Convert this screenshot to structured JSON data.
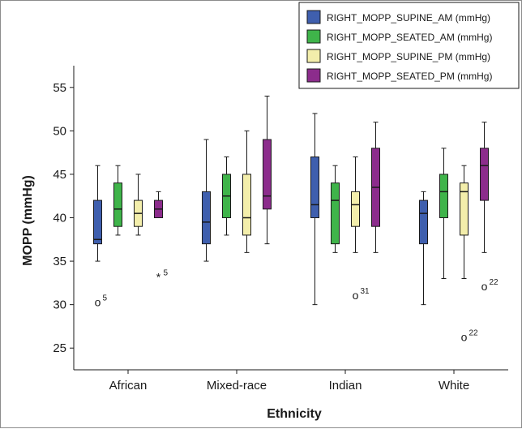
{
  "chart_data": {
    "type": "boxplot",
    "xlabel": "Ethnicity",
    "ylabel": "MOPP (mmHg)",
    "ylim": [
      22.5,
      57.5
    ],
    "yticks": [
      25,
      30,
      35,
      40,
      45,
      50,
      55
    ],
    "categories": [
      "African",
      "Mixed-race",
      "Indian",
      "White"
    ],
    "legend_position": "top-right",
    "series": [
      {
        "name": "RIGHT_MOPP_SUPINE_AM (mmHg)",
        "color": "#3f5fae",
        "boxes": [
          {
            "min": 35,
            "q1": 37,
            "median": 37.5,
            "q3": 42,
            "max": 46
          },
          {
            "min": 35,
            "q1": 37,
            "median": 39.5,
            "q3": 43,
            "max": 49
          },
          {
            "min": 30,
            "q1": 40,
            "median": 41.5,
            "q3": 47,
            "max": 52
          },
          {
            "min": 30,
            "q1": 37,
            "median": 40.5,
            "q3": 42,
            "max": 43
          }
        ]
      },
      {
        "name": "RIGHT_MOPP_SEATED_AM (mmHg)",
        "color": "#3fb44a",
        "boxes": [
          {
            "min": 38,
            "q1": 39,
            "median": 41,
            "q3": 44,
            "max": 46
          },
          {
            "min": 38,
            "q1": 40,
            "median": 42.5,
            "q3": 45,
            "max": 47
          },
          {
            "min": 36,
            "q1": 37,
            "median": 42,
            "q3": 44,
            "max": 46
          },
          {
            "min": 33,
            "q1": 40,
            "median": 43,
            "q3": 45,
            "max": 48
          }
        ]
      },
      {
        "name": "RIGHT_MOPP_SUPINE_PM (mmHg)",
        "color": "#f3eeab",
        "boxes": [
          {
            "min": 38,
            "q1": 39,
            "median": 40.5,
            "q3": 42,
            "max": 45
          },
          {
            "min": 36,
            "q1": 38,
            "median": 40,
            "q3": 45,
            "max": 50
          },
          {
            "min": 36,
            "q1": 39,
            "median": 41.5,
            "q3": 43,
            "max": 47
          },
          {
            "min": 33,
            "q1": 38,
            "median": 43,
            "q3": 44,
            "max": 46
          }
        ]
      },
      {
        "name": "RIGHT_MOPP_SEATED_PM (mmHg)",
        "color": "#8c2c8c",
        "boxes": [
          {
            "min": 40,
            "q1": 40,
            "median": 41,
            "q3": 42,
            "max": 43
          },
          {
            "min": 37,
            "q1": 41,
            "median": 42.5,
            "q3": 49,
            "max": 54
          },
          {
            "min": 36,
            "q1": 39,
            "median": 43.5,
            "q3": 48,
            "max": 51
          },
          {
            "min": 36,
            "q1": 42,
            "median": 46,
            "q3": 48,
            "max": 51
          }
        ]
      }
    ],
    "outliers": [
      {
        "category": "African",
        "series": 0,
        "value": 30.3,
        "symbol": "o",
        "label": "5"
      },
      {
        "category": "African",
        "series": 3,
        "value": 33.2,
        "symbol": "*",
        "label": "5"
      },
      {
        "category": "Indian",
        "series": 2,
        "value": 31.1,
        "symbol": "o",
        "label": "31"
      },
      {
        "category": "White",
        "series": 2,
        "value": 26.3,
        "symbol": "o",
        "label": "22"
      },
      {
        "category": "White",
        "series": 3,
        "value": 32.1,
        "symbol": "o",
        "label": "22"
      }
    ]
  }
}
